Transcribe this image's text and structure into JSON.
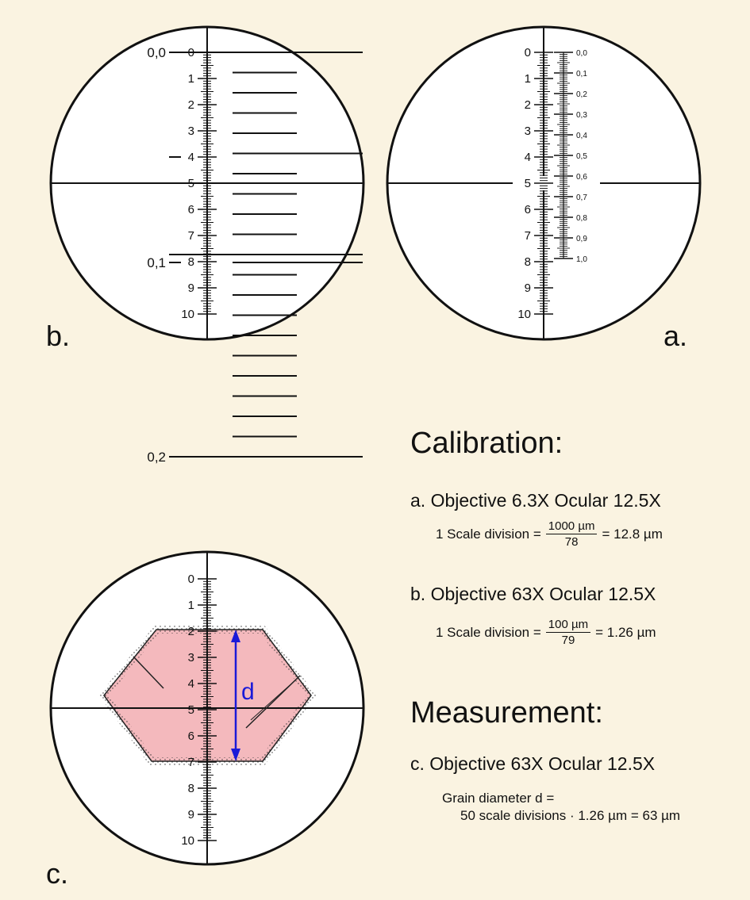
{
  "panels": {
    "b": {
      "letter": "b.",
      "stage_labels": [
        "0,0",
        "0,1",
        "0,2"
      ],
      "ocular_scale_labels": [
        "0",
        "1",
        "2",
        "3",
        "4",
        "5",
        "6",
        "7",
        "8",
        "9",
        "10"
      ]
    },
    "a": {
      "letter": "a.",
      "ocular_scale_labels": [
        "0",
        "1",
        "2",
        "3",
        "4",
        "5",
        "6",
        "7",
        "8",
        "9",
        "10"
      ],
      "stage_scale_labels": [
        "0,0",
        "0,1",
        "0,2",
        "0,3",
        "0,4",
        "0,5",
        "0,6",
        "0,7",
        "0,8",
        "0,9",
        "1,0"
      ]
    },
    "c": {
      "letter": "c.",
      "ocular_scale_labels": [
        "0",
        "1",
        "2",
        "3",
        "4",
        "5",
        "6",
        "7",
        "8",
        "9",
        "10"
      ],
      "grain_label": "d"
    }
  },
  "calibration": {
    "heading": "Calibration:",
    "a": {
      "title": "a. Objective 6.3X   Ocular 12.5X",
      "prefix": "1  Scale division  =",
      "numerator": "1000 µm",
      "denominator": "78",
      "result": "=  12.8 µm"
    },
    "b": {
      "title": "b. Objective 63X   Ocular 12.5X",
      "prefix": "1  Scale division  =",
      "numerator": "100 µm",
      "denominator": "79",
      "result": "=  1.26 µm"
    }
  },
  "measurement": {
    "heading": "Measurement:",
    "c": {
      "title": "c. Objective 63X   Ocular 12.5X",
      "line1": "Grain diameter  d =",
      "line2": "50 scale divisions · 1.26 µm = 63 µm"
    }
  },
  "colors": {
    "background": "#faf3e1",
    "grain_fill": "#f4b9bd",
    "arrow": "#1a1ad8",
    "ink": "#111111"
  }
}
